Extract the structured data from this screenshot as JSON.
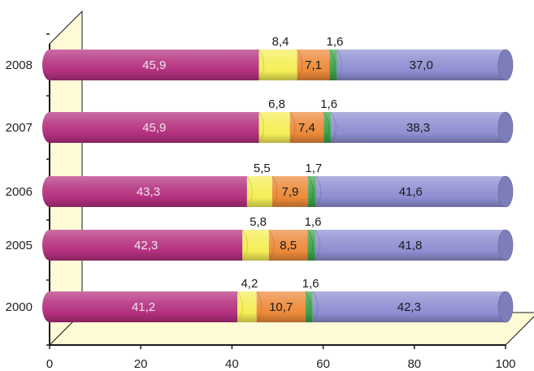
{
  "chart_data": {
    "type": "bar",
    "orientation": "horizontal",
    "stacked": true,
    "style": "3d-cylinder",
    "categories": [
      "2000",
      "2005",
      "2006",
      "2007",
      "2008"
    ],
    "series": [
      {
        "values": [
          41.2,
          42.3,
          43.3,
          45.9,
          45.9
        ],
        "labels": [
          "41,2",
          "42,3",
          "43,3",
          "45,9",
          "45,9"
        ],
        "color": "#b4307f",
        "label_color": "#f3e3ec"
      },
      {
        "values": [
          4.2,
          5.8,
          5.5,
          6.8,
          8.4
        ],
        "labels": [
          "4,2",
          "5,8",
          "5,5",
          "6,8",
          "8,4"
        ],
        "color": "#f5ee57",
        "label_color": "#1a1a1a"
      },
      {
        "values": [
          10.7,
          8.5,
          7.9,
          7.4,
          7.1
        ],
        "labels": [
          "10,7",
          "8,5",
          "7,9",
          "7,4",
          "7,1"
        ],
        "color": "#ed8a3a",
        "label_color": "#1a1a1a"
      },
      {
        "values": [
          1.6,
          1.6,
          1.7,
          1.6,
          1.6
        ],
        "labels": [
          "1,6",
          "1,6",
          "1,7",
          "1,6",
          "1,6"
        ],
        "color": "#3ba34a",
        "label_color": "#1a1a1a"
      },
      {
        "values": [
          42.3,
          41.8,
          41.6,
          38.3,
          37.0
        ],
        "labels": [
          "42,3",
          "41,8",
          "41,6",
          "38,3",
          "37,0"
        ],
        "color": "#8e8ed2",
        "label_color": "#1a1a1a"
      }
    ],
    "x_ticks": [
      "0",
      "20",
      "40",
      "60",
      "80",
      "100"
    ],
    "xlim": [
      0,
      100
    ],
    "title": "",
    "xlabel": "",
    "ylabel": "",
    "grid": false,
    "legend": "none",
    "wall_color": "#fffbd6"
  }
}
